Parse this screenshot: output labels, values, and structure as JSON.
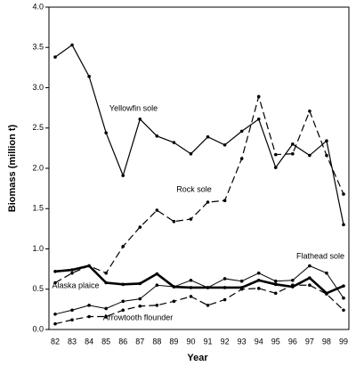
{
  "chart_data": {
    "type": "line",
    "xlabel": "Year",
    "ylabel": "Biomass (million t)",
    "categories": [
      "82",
      "83",
      "84",
      "85",
      "86",
      "87",
      "88",
      "89",
      "90",
      "91",
      "92",
      "93",
      "94",
      "95",
      "96",
      "97",
      "98",
      "99"
    ],
    "ylim": [
      0,
      4
    ],
    "yticks": [
      {
        "value": 0,
        "label": "0.0"
      },
      0.5,
      {
        "value": 1,
        "label": "1.0"
      },
      1.5,
      {
        "value": 2,
        "label": "2.0"
      },
      2.5,
      {
        "value": 3,
        "label": "3.0"
      },
      3.5,
      {
        "value": 4,
        "label": "4.0"
      }
    ],
    "series": [
      {
        "name": "Yellowfin sole",
        "color": "#000000",
        "line_style": "solid",
        "line_width": 1.2,
        "values": [
          3.38,
          3.53,
          3.14,
          2.44,
          1.91,
          2.61,
          2.4,
          2.32,
          2.18,
          2.39,
          2.29,
          2.46,
          2.61,
          2.01,
          2.3,
          2.16,
          2.34,
          1.3
        ]
      },
      {
        "name": "Rock sole",
        "color": "#000000",
        "line_style": "dashed",
        "line_width": 1.2,
        "values": [
          0.58,
          0.7,
          0.79,
          0.7,
          1.03,
          1.27,
          1.48,
          1.34,
          1.37,
          1.58,
          1.6,
          2.12,
          2.89,
          2.17,
          2.18,
          2.71,
          2.16,
          1.68
        ]
      },
      {
        "name": "Flathead sole",
        "color": "#000000",
        "line_style": "solid",
        "line_width": 1,
        "values": [
          0.19,
          0.24,
          0.3,
          0.26,
          0.35,
          0.38,
          0.55,
          0.53,
          0.61,
          0.52,
          0.63,
          0.6,
          0.7,
          0.6,
          0.61,
          0.79,
          0.7,
          0.39
        ]
      },
      {
        "name": "Alaska plaice",
        "color": "#000000",
        "line_style": "solid",
        "line_width": 2.6,
        "values": [
          0.72,
          0.74,
          0.79,
          0.58,
          0.56,
          0.57,
          0.69,
          0.53,
          0.52,
          0.52,
          0.52,
          0.52,
          0.61,
          0.56,
          0.53,
          0.64,
          0.45,
          0.54
        ]
      },
      {
        "name": "Arrowtooth flounder",
        "color": "#000000",
        "line_style": "dashed",
        "line_width": 1.2,
        "values": [
          0.07,
          0.12,
          0.16,
          0.16,
          0.24,
          0.29,
          0.3,
          0.35,
          0.41,
          0.3,
          0.37,
          0.5,
          0.51,
          0.45,
          0.55,
          0.55,
          0.44,
          0.24
        ]
      }
    ]
  }
}
